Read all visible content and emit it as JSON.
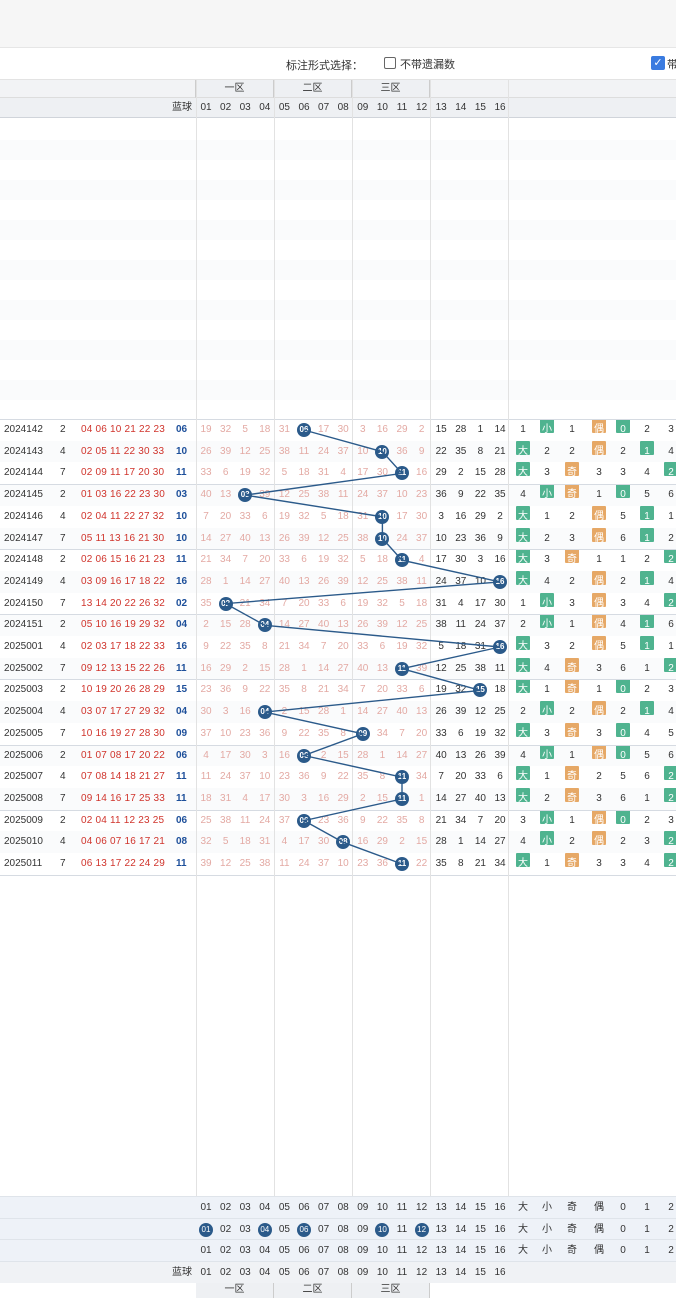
{
  "options": {
    "label": "标注形式选择：",
    "no_miss_label": "不带遗漏数",
    "checked_label": "带"
  },
  "zones": [
    "一区",
    "二区",
    "三区"
  ],
  "blue_header": "蓝球",
  "red_cols": [
    "01",
    "02",
    "03",
    "04",
    "05",
    "06",
    "07",
    "08",
    "09",
    "10",
    "11",
    "12",
    "13",
    "14",
    "15",
    "16"
  ],
  "rows": [
    {
      "issue": "2024142",
      "sum": "2",
      "reds": "04 06 10 21 22 23",
      "blue": "06",
      "ball": "06"
    },
    {
      "issue": "2024143",
      "sum": "4",
      "reds": "02 05 11 22 30 33",
      "blue": "10",
      "ball": "10"
    },
    {
      "issue": "2024144",
      "sum": "7",
      "reds": "02 09 11 17 20 30",
      "blue": "11",
      "ball": "11"
    },
    {
      "issue": "2024145",
      "sum": "2",
      "reds": "01 03 16 22 23 30",
      "blue": "03",
      "ball": "03"
    },
    {
      "issue": "2024146",
      "sum": "4",
      "reds": "02 04 11 22 27 32",
      "blue": "10",
      "ball": "10"
    },
    {
      "issue": "2024147",
      "sum": "7",
      "reds": "05 11 13 16 21 30",
      "blue": "10",
      "ball": "10"
    },
    {
      "issue": "2024148",
      "sum": "2",
      "reds": "02 06 15 16 21 23",
      "blue": "11",
      "ball": "11"
    },
    {
      "issue": "2024149",
      "sum": "4",
      "reds": "03 09 16 17 18 22",
      "blue": "16",
      "ball": "16"
    },
    {
      "issue": "2024150",
      "sum": "7",
      "reds": "13 14 20 22 26 32",
      "blue": "02",
      "ball": "02"
    },
    {
      "issue": "2024151",
      "sum": "2",
      "reds": "05 10 16 19 29 32",
      "blue": "04",
      "ball": "04"
    },
    {
      "issue": "2025001",
      "sum": "4",
      "reds": "02 03 17 18 22 33",
      "blue": "16",
      "ball": "16"
    },
    {
      "issue": "2025002",
      "sum": "7",
      "reds": "09 12 13 15 22 26",
      "blue": "11",
      "ball": "11"
    },
    {
      "issue": "2025003",
      "sum": "2",
      "reds": "10 19 20 26 28 29",
      "blue": "15",
      "ball": "15"
    },
    {
      "issue": "2025004",
      "sum": "4",
      "reds": "03 07 17 27 29 32",
      "blue": "04",
      "ball": "04"
    },
    {
      "issue": "2025005",
      "sum": "7",
      "reds": "10 16 19 27 28 30",
      "blue": "09",
      "ball": "09"
    },
    {
      "issue": "2025006",
      "sum": "2",
      "reds": "01 07 08 17 20 22",
      "blue": "06",
      "ball": "06"
    },
    {
      "issue": "2025007",
      "sum": "4",
      "reds": "07 08 14 18 21 27",
      "blue": "11",
      "ball": "11"
    },
    {
      "issue": "2025008",
      "sum": "7",
      "reds": "09 14 16 17 25 33",
      "blue": "11",
      "ball": "11"
    },
    {
      "issue": "2025009",
      "sum": "2",
      "reds": "02 04 11 12 23 25",
      "blue": "06",
      "ball": "06"
    },
    {
      "issue": "2025010",
      "sum": "4",
      "reds": "04 06 07 16 17 21",
      "blue": "08",
      "ball": "08"
    },
    {
      "issue": "2025011",
      "sum": "7",
      "reds": "06 13 17 22 24 29",
      "blue": "11",
      "ball": "11"
    }
  ],
  "footer_rows": [
    {
      "label": "",
      "values": [
        "01",
        "02",
        "03",
        "04",
        "05",
        "06",
        "07",
        "08",
        "09",
        "10",
        "11",
        "12",
        "13",
        "14",
        "15",
        "16"
      ],
      "tail": [
        "大",
        "小",
        "奇",
        "偶",
        "0",
        "1",
        "2"
      ]
    },
    {
      "label": "",
      "values": [
        "01",
        "02",
        "03",
        "04",
        "05",
        "06",
        "07",
        "08",
        "09",
        "10",
        "11",
        "12",
        "13",
        "14",
        "15",
        "16"
      ],
      "tail": [
        "大",
        "小",
        "奇",
        "偶",
        "0",
        "1",
        "2"
      ]
    },
    {
      "label": "",
      "values": [
        "01",
        "02",
        "03",
        "04",
        "05",
        "06",
        "07",
        "08",
        "09",
        "10",
        "11",
        "12",
        "13",
        "14",
        "15",
        "16"
      ],
      "tail": [
        "大",
        "小",
        "奇",
        "偶",
        "0",
        "1",
        "2"
      ]
    }
  ],
  "footer_blue_label": "蓝球",
  "colors": {
    "ball": "#2b5a8a",
    "red_text": "#d0342c",
    "blue_text": "#1d4f9a",
    "green_tag": "#4fb38f",
    "orange_tag": "#e6a866"
  }
}
